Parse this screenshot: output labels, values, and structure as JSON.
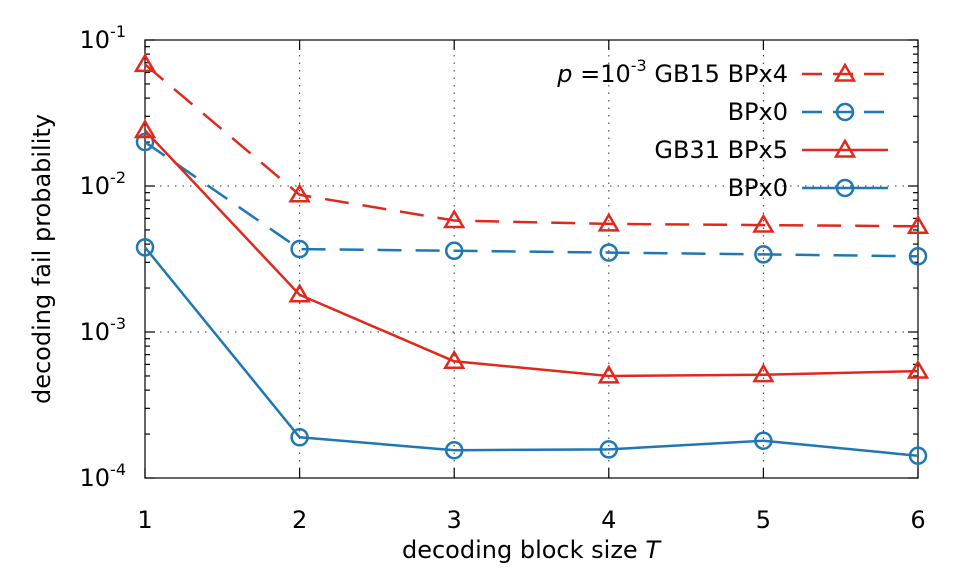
{
  "chart_data": {
    "type": "line",
    "xlabel": "decoding block size",
    "xlabel_var": "T",
    "ylabel": "decoding fail probability",
    "x": [
      1,
      2,
      3,
      4,
      5,
      6
    ],
    "xlim": [
      1,
      6
    ],
    "ylim": [
      0.0001,
      0.1
    ],
    "yscale": "log",
    "grid": true,
    "legend_position": "top-right",
    "legend_prefix": "p =10",
    "legend_prefix_exp": "-3",
    "x_ticks": [
      "1",
      "2",
      "3",
      "4",
      "5",
      "6"
    ],
    "y_ticks": [
      {
        "value": 0.1,
        "base": "10",
        "exp": "-1"
      },
      {
        "value": 0.01,
        "base": "10",
        "exp": "-2"
      },
      {
        "value": 0.001,
        "base": "10",
        "exp": "-3"
      },
      {
        "value": 0.0001,
        "base": "10",
        "exp": "-4"
      }
    ],
    "series": [
      {
        "name": "GB15 BPx4",
        "color": "#e0291c",
        "dash": true,
        "marker": "triangle",
        "values": [
          0.068,
          0.0087,
          0.0058,
          0.0055,
          0.0054,
          0.0053
        ]
      },
      {
        "name": "BPx0",
        "color": "#1f77b4",
        "dash": true,
        "marker": "circle",
        "values": [
          0.02,
          0.0037,
          0.0036,
          0.0035,
          0.0034,
          0.0033
        ]
      },
      {
        "name": "GB31 BPx5",
        "color": "#e0291c",
        "dash": false,
        "marker": "triangle",
        "values": [
          0.024,
          0.0018,
          0.00063,
          0.0005,
          0.00051,
          0.00054
        ]
      },
      {
        "name": "BPx0",
        "color": "#1f77b4",
        "dash": false,
        "marker": "circle",
        "values": [
          0.0038,
          0.00019,
          0.000155,
          0.000157,
          0.00018,
          0.000142
        ]
      }
    ]
  }
}
